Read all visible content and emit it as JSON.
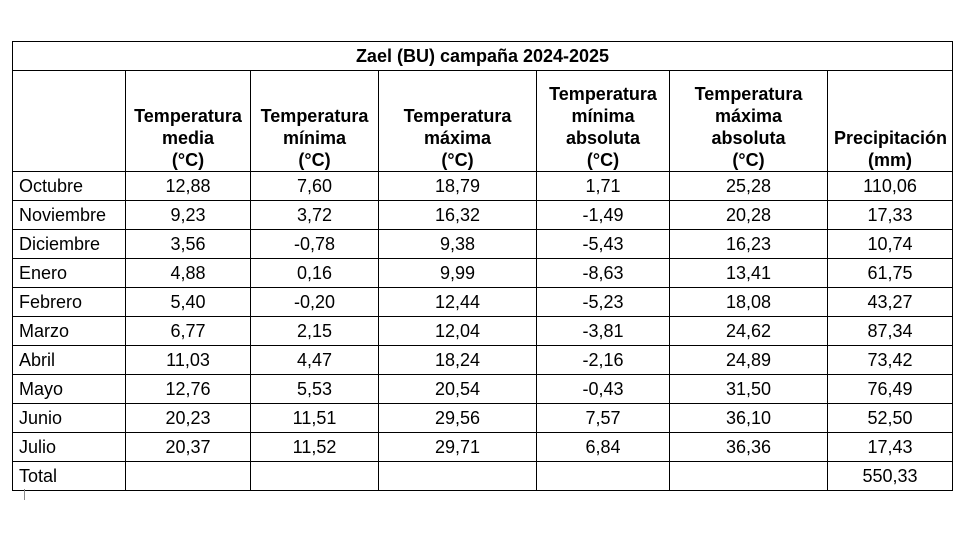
{
  "table": {
    "title": "Zael (BU) campaña 2024-2025",
    "headers": [
      {
        "lines": [
          "",
          "",
          "",
          ""
        ]
      },
      {
        "lines": [
          "",
          "Temperatura",
          "media",
          "(°C)"
        ]
      },
      {
        "lines": [
          "",
          "Temperatura",
          "mínima",
          "(°C)"
        ]
      },
      {
        "lines": [
          "",
          "Temperatura",
          "máxima",
          "(°C)"
        ]
      },
      {
        "lines": [
          "Temperatura",
          "mínima",
          "absoluta",
          "(°C)"
        ]
      },
      {
        "lines": [
          "Temperatura",
          "máxima",
          "absoluta",
          "(°C)"
        ]
      },
      {
        "lines": [
          "",
          "",
          "Precipitación",
          "(mm)"
        ]
      }
    ],
    "rows": [
      [
        "Octubre",
        "12,88",
        "7,60",
        "18,79",
        "1,71",
        "25,28",
        "110,06"
      ],
      [
        "Noviembre",
        "9,23",
        "3,72",
        "16,32",
        "-1,49",
        "20,28",
        "17,33"
      ],
      [
        "Diciembre",
        "3,56",
        "-0,78",
        "9,38",
        "-5,43",
        "16,23",
        "10,74"
      ],
      [
        "Enero",
        "4,88",
        "0,16",
        "9,99",
        "-8,63",
        "13,41",
        "61,75"
      ],
      [
        "Febrero",
        "5,40",
        "-0,20",
        "12,44",
        "-5,23",
        "18,08",
        "43,27"
      ],
      [
        "Marzo",
        "6,77",
        "2,15",
        "12,04",
        "-3,81",
        "24,62",
        "87,34"
      ],
      [
        "Abril",
        "11,03",
        "4,47",
        "18,24",
        "-2,16",
        "24,89",
        "73,42"
      ],
      [
        "Mayo",
        "12,76",
        "5,53",
        "20,54",
        "-0,43",
        "31,50",
        "76,49"
      ],
      [
        "Junio",
        "20,23",
        "11,51",
        "29,56",
        "7,57",
        "36,10",
        "52,50"
      ],
      [
        "Julio",
        "20,37",
        "11,52",
        "29,71",
        "6,84",
        "36,36",
        "17,43"
      ],
      [
        "Total",
        "",
        "",
        "",
        "",
        "",
        "550,33"
      ]
    ]
  }
}
